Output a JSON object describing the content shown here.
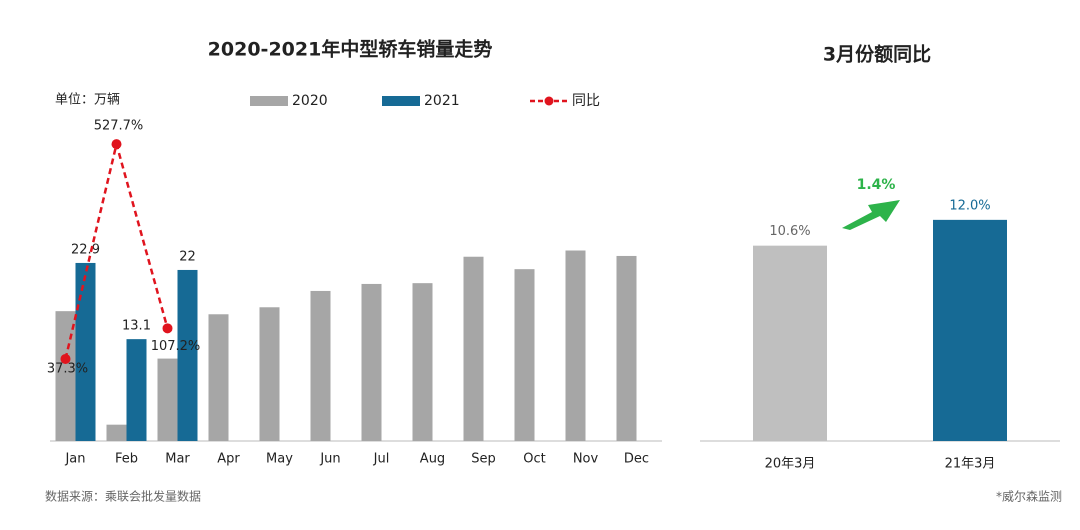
{
  "chart_data": [
    {
      "type": "bar",
      "title": "2020-2021年中型轿车销量走势",
      "categories": [
        "Jan",
        "Feb",
        "Mar",
        "Apr",
        "May",
        "Jun",
        "Jul",
        "Aug",
        "Sep",
        "Oct",
        "Nov",
        "Dec"
      ],
      "series": [
        {
          "name": "2020",
          "color": "#a6a6a6",
          "values": [
            16.7,
            2.1,
            10.6,
            16.3,
            17.2,
            19.3,
            20.2,
            20.3,
            23.7,
            22.1,
            24.5,
            23.8
          ]
        },
        {
          "name": "2021",
          "color": "#166a95",
          "values": [
            22.9,
            13.1,
            22.0,
            null,
            null,
            null,
            null,
            null,
            null,
            null,
            null,
            null
          ],
          "show_labels": true
        },
        {
          "name": "同比",
          "type": "line",
          "axis": "y2",
          "color": "#e0141e",
          "values": [
            37.3,
            527.7,
            107.2,
            null,
            null,
            null,
            null,
            null,
            null,
            null,
            null,
            null
          ],
          "value_labels": [
            "37.3%",
            "527.7%",
            "107.2%",
            null,
            null,
            null,
            null,
            null,
            null,
            null,
            null,
            null
          ]
        }
      ],
      "ylim": [
        0,
        40
      ],
      "y2lim": [
        -150,
        560
      ],
      "legend": "top"
    },
    {
      "type": "bar",
      "title": "3月份额同比",
      "categories": [
        "20年3月",
        "21年3月"
      ],
      "values": [
        10.6,
        12.0
      ],
      "value_labels": [
        "10.6%",
        "12.0%"
      ],
      "colors": [
        "#bfbfbf",
        "#166a95"
      ],
      "ylim": [
        0,
        14
      ],
      "annotation": "1.4%"
    }
  ],
  "unit_note": "单位：万辆",
  "source": "数据来源：乘联会批发量数据",
  "footnote": "*威尔森监测"
}
